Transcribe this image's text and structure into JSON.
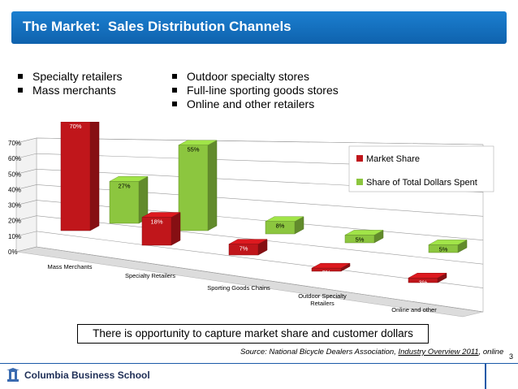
{
  "slide": {
    "title": "The Market:  Sales Distribution Channels",
    "page_number": "3"
  },
  "bullets": {
    "left": [
      "Specialty retailers",
      "Mass merchants"
    ],
    "right": [
      "Outdoor specialty stores",
      "Full-line sporting goods stores",
      "Online and other retailers"
    ]
  },
  "callout": "There is opportunity to capture market share and customer dollars",
  "source": {
    "prefix": "Source: National Bicycle Dealers Association, ",
    "report": "Industry Overview 2011",
    "suffix": ", online"
  },
  "footer": {
    "logo_text": "Columbia Business School"
  },
  "colors": {
    "market_share": "#c0161b",
    "dollars_spent": "#8cc63f",
    "title_bar": "#1570c0"
  },
  "chart_data": {
    "type": "bar",
    "title": "",
    "xlabel": "",
    "ylabel": "",
    "ylim": [
      0,
      70
    ],
    "yticks": [
      "0%",
      "10%",
      "20%",
      "30%",
      "40%",
      "50%",
      "60%",
      "70%"
    ],
    "categories": [
      "Mass Merchants",
      "Specialty Retailers",
      "Sporting Goods Chains",
      "Outdoor Specialty Retailers",
      "Online and other"
    ],
    "series": [
      {
        "name": "Market Share",
        "values": [
          70,
          18,
          7,
          2,
          3
        ],
        "labels": [
          "70%",
          "18%",
          "7%",
          "2%",
          "3%"
        ]
      },
      {
        "name": "Share of Total Dollars Spent",
        "values": [
          27,
          55,
          8,
          5,
          5
        ],
        "labels": [
          "27%",
          "55%",
          "8%",
          "5%",
          "5%"
        ]
      }
    ],
    "legend": "right"
  }
}
